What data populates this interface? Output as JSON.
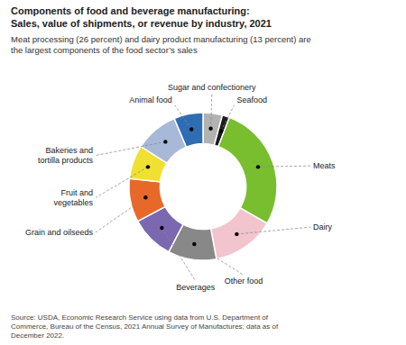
{
  "chart_data": {
    "type": "donut",
    "title": "Components of food and beverage manufacturing:\nSales, value of shipments, or revenue by industry, 2021",
    "subtitle": "Meat processing (26 percent) and dairy product manufacturing (13 percent) are\nthe largest components of the food sector’s sales",
    "source": "Source: USDA, Economic Research Service using data from U.S. Department of\nCommerce, Bureau of the Census, 2021 Annual Survey of Manufactures; data as of\nDecember 2022.",
    "categories": [
      "Sugar and confectionery",
      "Seafood",
      "Meats",
      "Dairy",
      "Other food",
      "Beverages",
      "Grain and oilseeds",
      "Fruit and\nvegetables",
      "Bakeries and\ntortilla products",
      "Animal food"
    ],
    "values": [
      4.0,
      1.5,
      26.0,
      13.0,
      10.0,
      9.0,
      9.0,
      7.0,
      9.0,
      6.0
    ],
    "colors": [
      "#b2b2b2",
      "#1c1c1c",
      "#78be2e",
      "#f2c4ce",
      "#888888",
      "#7b68b0",
      "#e8682a",
      "#f0e030",
      "#a8b8d8",
      "#2e6db4"
    ]
  }
}
